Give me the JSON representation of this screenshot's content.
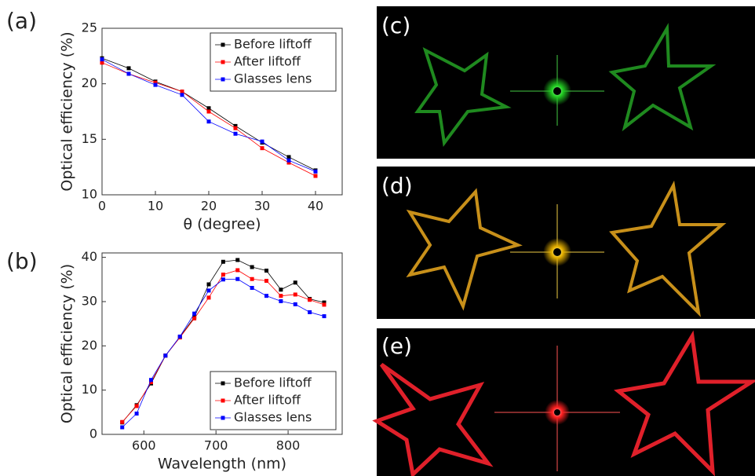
{
  "chart_data": [
    {
      "type": "line",
      "label": "(a)",
      "xlabel": "θ (degree)",
      "ylabel": "Optical efficiency (%)",
      "x": [
        0,
        5,
        10,
        15,
        20,
        25,
        30,
        35,
        40
      ],
      "xlim": [
        0,
        45
      ],
      "xticks": [
        0,
        10,
        20,
        30,
        40
      ],
      "ylim": [
        10,
        25
      ],
      "yticks": [
        10,
        15,
        20,
        25
      ],
      "legend": "upper right",
      "series": [
        {
          "name": "Before liftoff",
          "color": "#000000",
          "values": [
            22.3,
            21.4,
            20.2,
            19.3,
            17.8,
            16.2,
            14.7,
            13.4,
            12.2
          ]
        },
        {
          "name": "After liftoff",
          "color": "#ff0000",
          "values": [
            21.9,
            20.9,
            20.1,
            19.3,
            17.5,
            16.0,
            14.2,
            12.9,
            11.7
          ]
        },
        {
          "name": "Glasses lens",
          "color": "#0000ff",
          "values": [
            22.2,
            20.9,
            19.9,
            19.0,
            16.6,
            15.5,
            14.8,
            13.1,
            12.1
          ]
        }
      ]
    },
    {
      "type": "line",
      "label": "(b)",
      "xlabel": "Wavelength (nm)",
      "ylabel": "Optical efficiency (%)",
      "x": [
        570,
        590,
        610,
        630,
        650,
        670,
        690,
        710,
        730,
        750,
        770,
        790,
        810,
        830,
        850
      ],
      "xlim": [
        542,
        875
      ],
      "xticks": [
        600,
        700,
        800
      ],
      "ylim": [
        0,
        41
      ],
      "yticks": [
        0,
        10,
        20,
        30,
        40
      ],
      "legend": "lower right",
      "series": [
        {
          "name": "Before liftoff",
          "color": "#000000",
          "values": [
            2.7,
            6.6,
            11.5,
            17.8,
            22.0,
            26.5,
            33.9,
            39.0,
            39.4,
            37.8,
            37.0,
            32.7,
            34.3,
            30.6,
            29.8
          ]
        },
        {
          "name": "After liftoff",
          "color": "#ff0000",
          "values": [
            2.8,
            6.4,
            11.8,
            17.8,
            21.9,
            26.2,
            30.9,
            36.1,
            37.1,
            35.1,
            34.7,
            31.3,
            31.6,
            30.4,
            29.3
          ]
        },
        {
          "name": "Glasses lens",
          "color": "#0000ff",
          "values": [
            1.6,
            4.7,
            12.3,
            17.8,
            22.1,
            27.3,
            32.5,
            35.0,
            35.1,
            33.1,
            31.3,
            30.1,
            29.4,
            27.6,
            26.7
          ]
        }
      ]
    }
  ],
  "photos": [
    {
      "label": "(c)"
    },
    {
      "label": "(d)"
    },
    {
      "label": "(e)"
    }
  ]
}
